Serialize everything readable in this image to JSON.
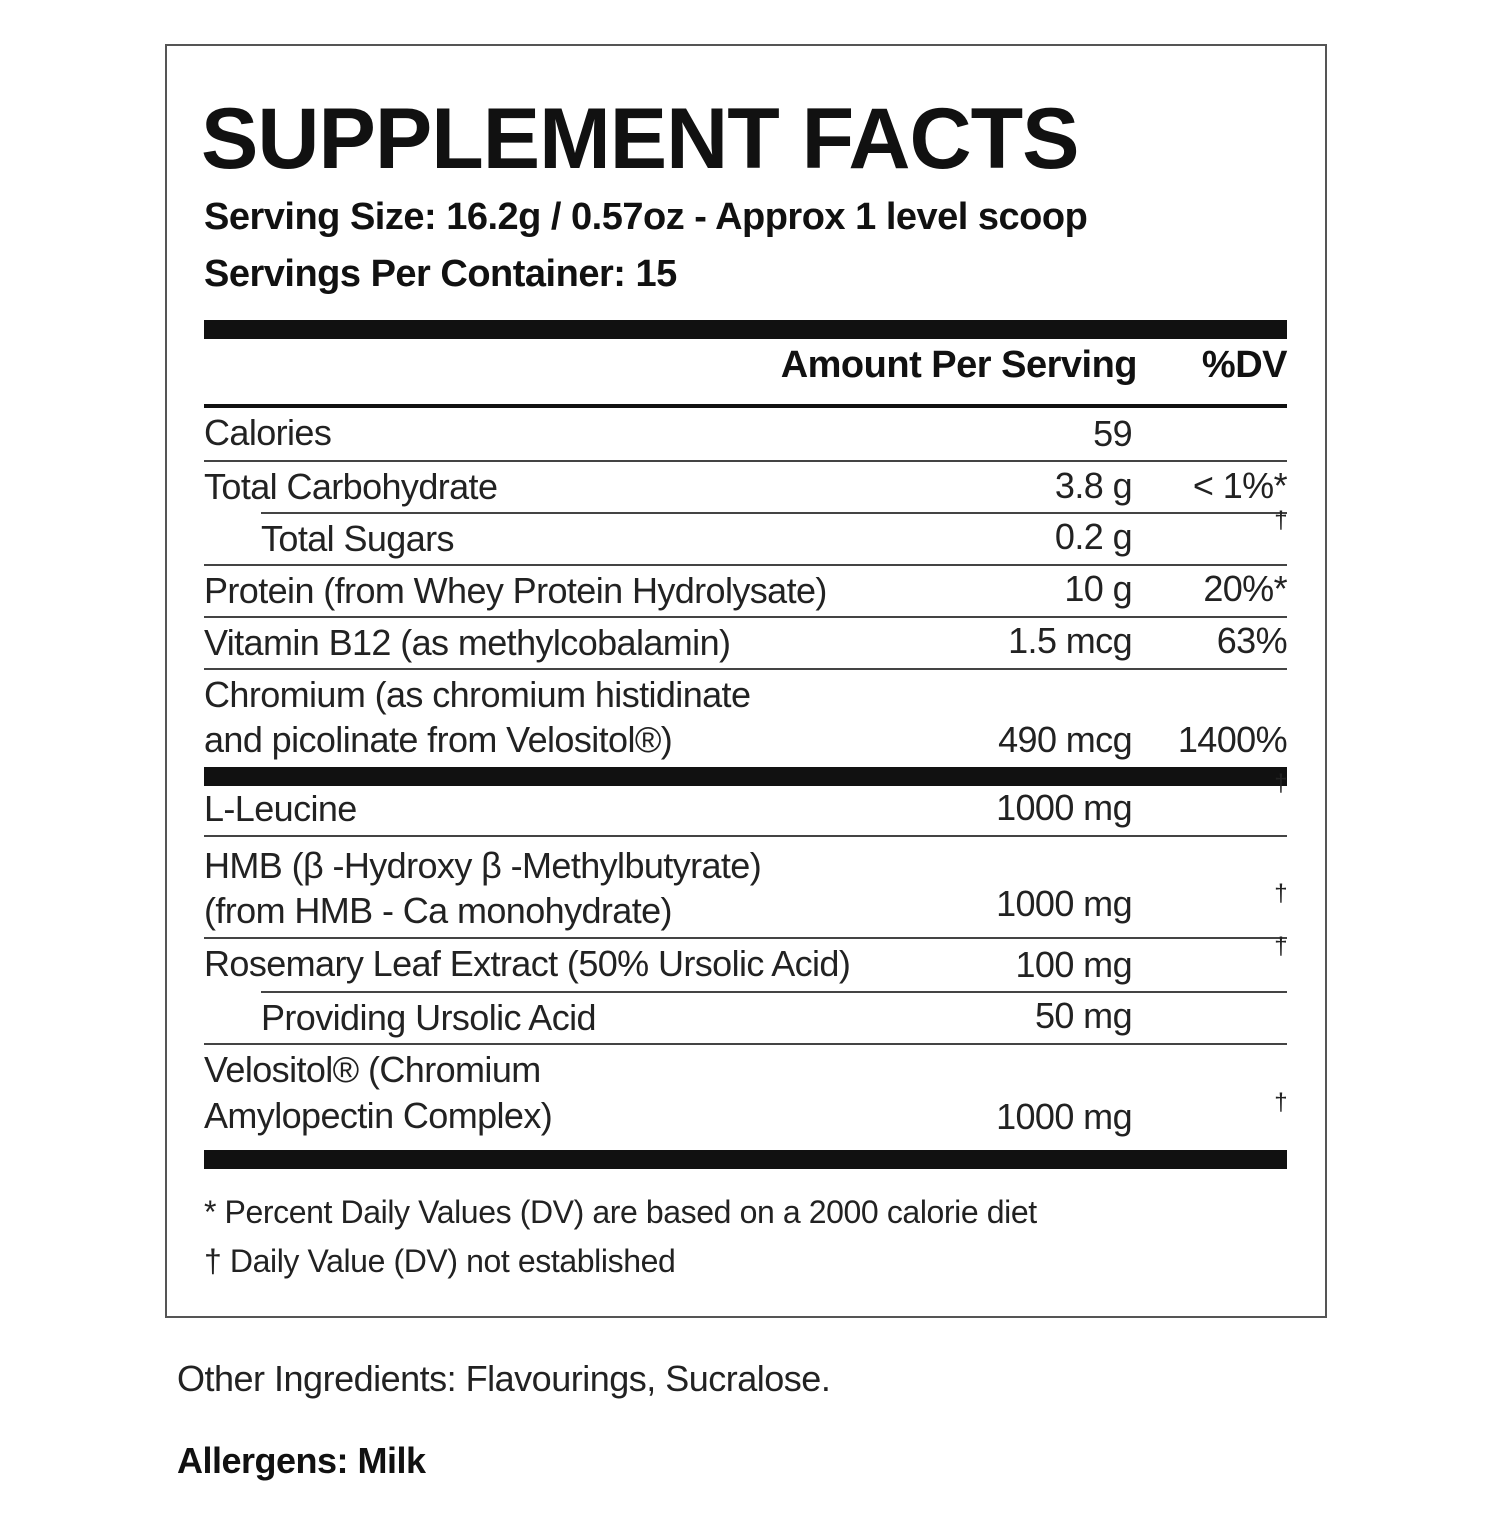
{
  "title": "SUPPLEMENT FACTS",
  "serving_size": "Serving Size: 16.2g / 0.57oz - Approx 1 level scoop",
  "servings_per_container": "Servings Per Container: 15",
  "header": {
    "amount": "Amount Per Serving",
    "dv": "%DV"
  },
  "rows": [
    {
      "name": "Calories",
      "amount": "59",
      "dv": ""
    },
    {
      "name": "Total Carbohydrate",
      "amount": "3.8 g",
      "dv": "< 1%*"
    },
    {
      "name": "Total Sugars",
      "amount": "0.2 g",
      "dv": "†"
    },
    {
      "name": "Protein (from Whey Protein Hydrolysate)",
      "amount": "10 g",
      "dv": "20%*"
    },
    {
      "name": "Vitamin B12 (as methylcobalamin)",
      "amount": "1.5 mcg",
      "dv": "63%"
    },
    {
      "name_line1": "Chromium (as chromium histidinate",
      "name_line2": "and picolinate from Velositol®)",
      "amount": "490 mcg",
      "dv": "1400%"
    },
    {
      "name": "L-Leucine",
      "amount": "1000 mg",
      "dv": "†"
    },
    {
      "name_line1": "HMB (β -Hydroxy β -Methylbutyrate)",
      "name_line2": "(from HMB - Ca monohydrate)",
      "amount": "1000 mg",
      "dv": "†"
    },
    {
      "name": "Rosemary Leaf Extract (50% Ursolic Acid)",
      "amount": "100 mg",
      "dv": "†"
    },
    {
      "name": "Providing Ursolic Acid",
      "amount": "50 mg",
      "dv": ""
    },
    {
      "name_line1": "Velositol® (Chromium",
      "name_line2": "Amylopectin Complex)",
      "amount": "1000 mg",
      "dv": "†"
    }
  ],
  "footnotes": [
    "* Percent Daily Values (DV) are based on a 2000 calorie diet",
    "† Daily Value (DV) not established"
  ],
  "other_ingredients": "Other Ingredients: Flavourings, Sucralose.",
  "allergens": "Allergens: Milk"
}
